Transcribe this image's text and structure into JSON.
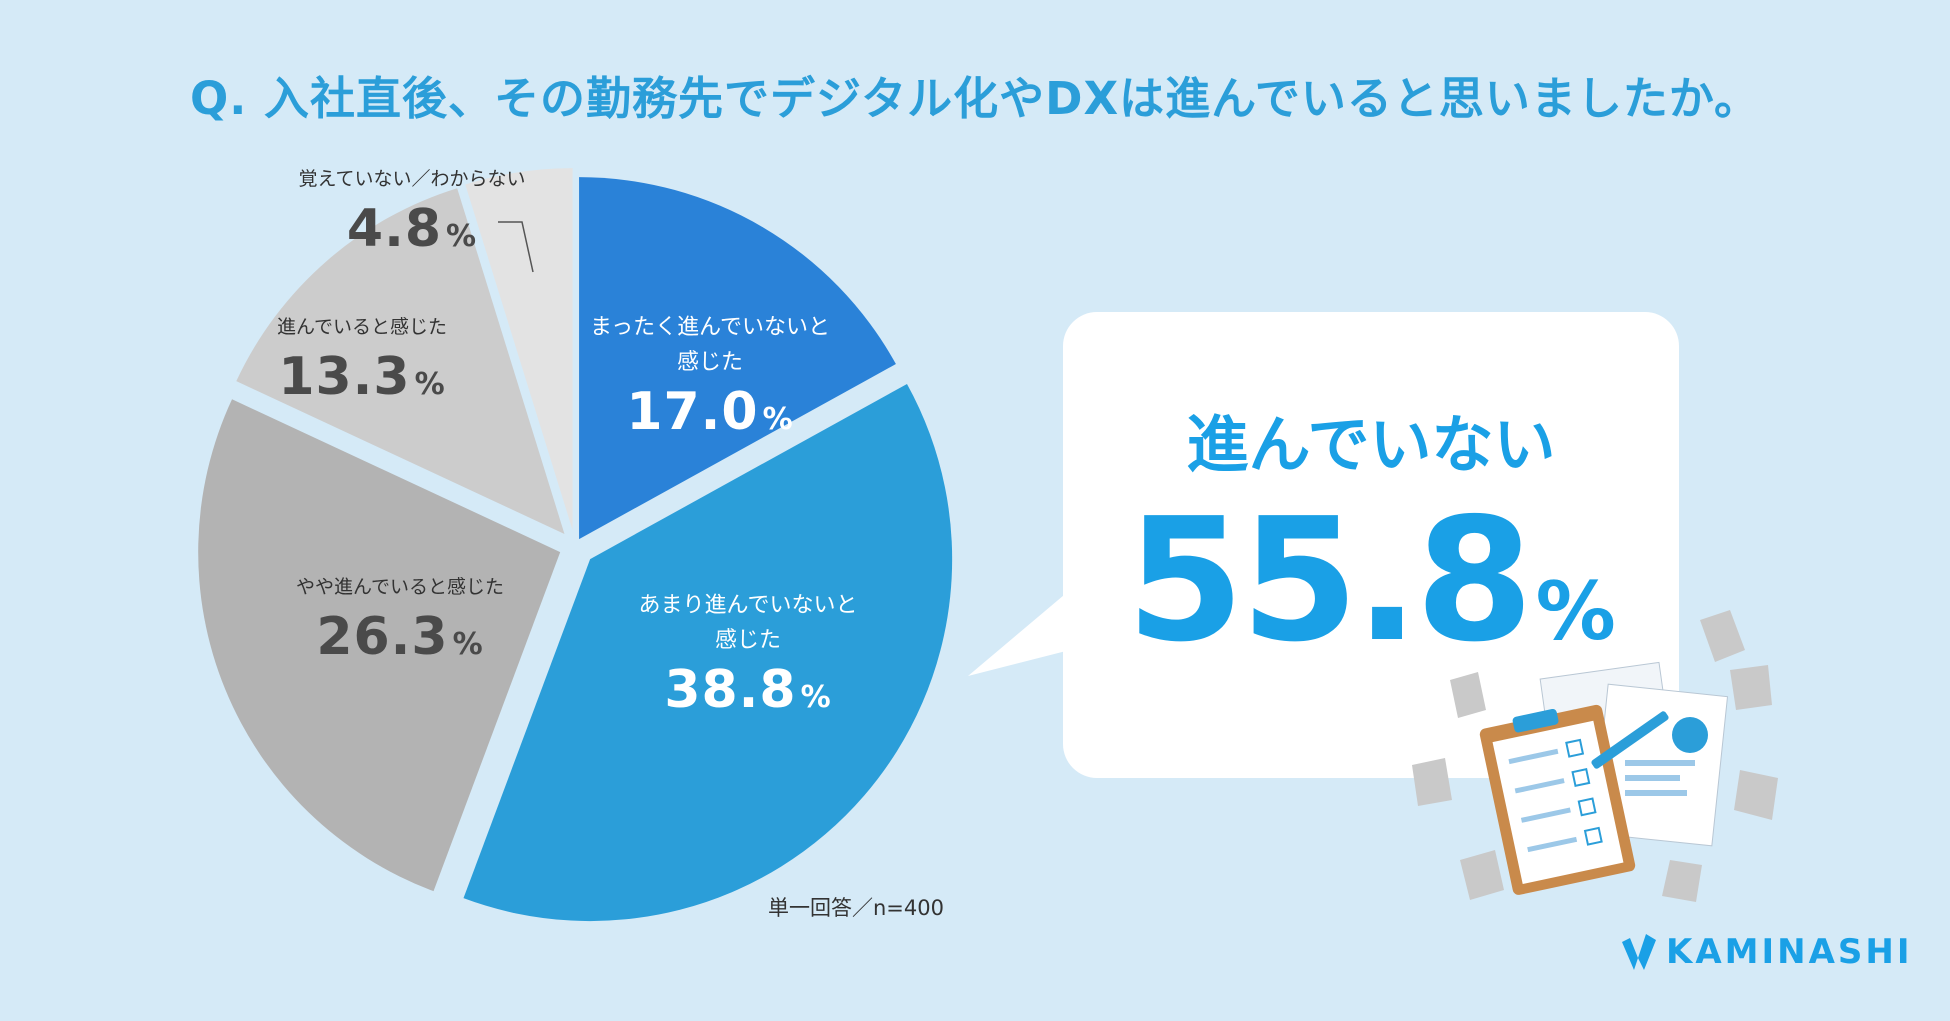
{
  "title": "Q. 入社直後、その勤務先でデジタル化やDXは進んでいると思いましたか。",
  "chart_data": {
    "type": "pie",
    "slices": [
      {
        "label": "まったく進んでいないと感じた",
        "value": 17.0,
        "color": "#2a82d8"
      },
      {
        "label": "あまり進んでいないと感じた",
        "value": 38.8,
        "color": "#2b9ed9"
      },
      {
        "label": "やや進んでいると感じた",
        "value": 26.3,
        "color": "#b3b3b3"
      },
      {
        "label": "進んでいると感じた",
        "value": 13.3,
        "color": "#cccccc"
      },
      {
        "label": "覚えていない／わからない",
        "value": 4.8,
        "color": "#e3e3e3"
      }
    ]
  },
  "labels": {
    "s1_cat_a": "まったく進んでいないと",
    "s1_cat_b": "感じた",
    "s1_val": "17.0",
    "s2_cat_a": "あまり進んでいないと",
    "s2_cat_b": "感じた",
    "s2_val": "38.8",
    "s3_cat": "やや進んでいると感じた",
    "s3_val": "26.3",
    "s4_cat": "進んでいると感じた",
    "s4_val": "13.3",
    "s5_cat": "覚えていない／わからない",
    "s5_val": "4.8",
    "pct": "%"
  },
  "note": "単一回答／n=400",
  "callout": {
    "heading": "進んでいない",
    "value": "55.8",
    "pct": "%"
  },
  "logo": "KAMINASHI"
}
